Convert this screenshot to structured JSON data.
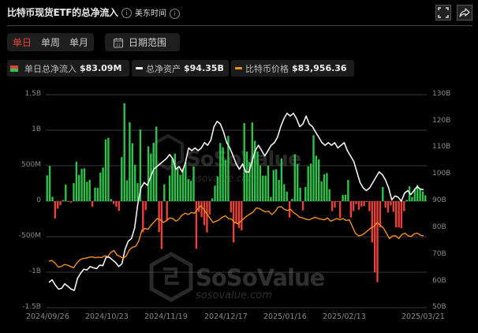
{
  "header": {
    "title": "比特币现货ETF的总净流入",
    "title_info_icon": "info-icon",
    "timezone_label": "美东时间",
    "timezone_info_icon": "info-icon",
    "fullscreen_icon": "fullscreen-icon",
    "share_icon": "share-icon"
  },
  "controls": {
    "period_tabs": [
      {
        "label": "单日",
        "active": true
      },
      {
        "label": "单周",
        "active": false
      },
      {
        "label": "单月",
        "active": false
      }
    ],
    "date_range_label": "日期范围",
    "date_range_icon": "calendar-icon"
  },
  "legend": [
    {
      "name": "单日总净流入",
      "value": "$83.09M",
      "color": "#2fc24a"
    },
    {
      "name": "总净资产",
      "value": "$94.35B",
      "color": "#ffffff"
    },
    {
      "name": "比特币价格",
      "value": "$83,956.36",
      "color": "#f0901e"
    }
  ],
  "watermark": {
    "brand": "SoSoValue",
    "url": "sosovalue.com"
  },
  "colors": {
    "inflow": "#2fc24a",
    "outflow": "#e8403a",
    "net_assets": "#f2f2f2",
    "btc_price": "#f0901e",
    "active_tab": "#e8403a",
    "background": "#000000"
  },
  "chart_data": {
    "type": "bar+line",
    "title": "比特币现货ETF的总净流入",
    "x_tick_labels": [
      "2024/09/26",
      "2024/10/23",
      "2024/11/19",
      "2024/12/17",
      "2025/01/16",
      "2025/02/13",
      "2025/03/21"
    ],
    "left_axis": {
      "label": "单日总净流入",
      "ticks": [
        "1.5B",
        "1B",
        "500M",
        "0",
        "-500M",
        "-1B",
        "-1.5B"
      ],
      "range": [
        -1.5,
        1.5
      ],
      "unit": "B USD"
    },
    "right_axis": {
      "label": "总净资产",
      "ticks": [
        "130B",
        "120B",
        "110B",
        "100B",
        "90B",
        "80B",
        "70B",
        "60B",
        "50B"
      ],
      "range": [
        50,
        130
      ],
      "unit": "B USD"
    },
    "grid": true,
    "legend_position": "top",
    "series": [
      {
        "name": "单日总净流入",
        "type": "bar",
        "unit": "M USD",
        "values": [
          365,
          494,
          62,
          -242,
          -105,
          -55,
          18,
          235,
          -3,
          -19,
          254,
          556,
          371,
          457,
          463,
          274,
          299,
          -79,
          192,
          188,
          403,
          476,
          870,
          893,
          31,
          -40,
          -79,
          -137,
          621,
          1380,
          294,
          1110,
          818,
          513,
          255,
          1010,
          -438,
          -127,
          773,
          672,
          820,
          1050,
          -436,
          -671,
          240,
          -277,
          361,
          598,
          670,
          487,
          372,
          461,
          551,
          310,
          288,
          490,
          -671,
          -150,
          -226,
          -338,
          -440,
          -188,
          40,
          220,
          350,
          820,
          760,
          580,
          920,
          -158,
          -580,
          -310,
          -380,
          -410,
          1100,
          700,
          550,
          1110,
          850,
          700,
          500,
          360,
          360,
          500,
          60,
          440,
          450,
          300,
          600,
          240,
          135,
          -230,
          36,
          660,
          520,
          190,
          -130,
          200,
          490,
          530,
          930,
          640,
          590,
          280,
          380,
          395,
          170,
          -140,
          -90,
          -8,
          -240,
          88,
          92,
          300,
          -230,
          -140,
          -40,
          -120,
          -76,
          -70,
          -10,
          -140,
          -580,
          -1000,
          -1140,
          -370,
          200,
          -90,
          -160,
          -60,
          -150,
          -370,
          -370,
          -380,
          -140,
          20,
          210,
          60,
          180,
          230,
          180,
          140,
          83
        ]
      },
      {
        "name": "总净资产",
        "type": "line",
        "unit": "B USD",
        "values": [
          59.5,
          60.5,
          58.5,
          57,
          57.3,
          59,
          58,
          57,
          56.5,
          61,
          63,
          64.5,
          64.2,
          65.5,
          65,
          64.7,
          66,
          65.8,
          69,
          69,
          68,
          67,
          65.5,
          66.5,
          72,
          75,
          76,
          80,
          89,
          95,
          97,
          96,
          99,
          102,
          103,
          104,
          105,
          106,
          107.5,
          106,
          102,
          103,
          101,
          104.5,
          110,
          109,
          110,
          109,
          110,
          112,
          111,
          113,
          118,
          120,
          119,
          116,
          112,
          110,
          107,
          104,
          102,
          104,
          101,
          101,
          105,
          109,
          111,
          109,
          107,
          109,
          111,
          112,
          114,
          118,
          121,
          123,
          122,
          123,
          121,
          118,
          119,
          122,
          119,
          118,
          116,
          114,
          112,
          111,
          112,
          111,
          112,
          110,
          111,
          112,
          109,
          107,
          105,
          101,
          97,
          95,
          94,
          95,
          97,
          99,
          101,
          100,
          98,
          95,
          90.5,
          92,
          91.5,
          90,
          93,
          94,
          92.5,
          94,
          95.5,
          94.5,
          94.35
        ]
      },
      {
        "name": "比特币价格",
        "type": "line",
        "unit": "USD",
        "values": [
          65000,
          65500,
          63500,
          60500,
          61000,
          62500,
          62000,
          61000,
          60000,
          63500,
          66000,
          67000,
          67200,
          68000,
          68200,
          67500,
          68000,
          67700,
          69000,
          68500,
          71500,
          73000,
          69500,
          68500,
          67000,
          69000,
          73500,
          75500,
          76000,
          80000,
          88000,
          89500,
          89000,
          92000,
          94500,
          97000,
          96000,
          94000,
          95500,
          97500,
          97000,
          95000,
          96500,
          99500,
          101000,
          100000,
          101500,
          101000,
          104000,
          106500,
          104000,
          100500,
          97500,
          94000,
          95000,
          96000,
          98000,
          99000,
          97000,
          96500,
          94000,
          93000,
          95000,
          97000,
          99000,
          100500,
          102000,
          105000,
          104500,
          103000,
          102000,
          102500,
          100000,
          102000,
          105500,
          106000,
          104000,
          103000,
          104000,
          101500,
          100000,
          98000,
          97500,
          96500,
          96000,
          97000,
          98000,
          97000,
          96500,
          96000,
          97500,
          95000,
          96000,
          97000,
          96000,
          97000,
          95500,
          96000,
          91000,
          86000,
          84000,
          84500,
          86000,
          88000,
          90000,
          91000,
          94000,
          92000,
          90000,
          86000,
          82000,
          84000,
          84000,
          82000,
          85000,
          86000,
          84000,
          83500,
          85500,
          86000,
          84500,
          84000
        ]
      }
    ]
  }
}
